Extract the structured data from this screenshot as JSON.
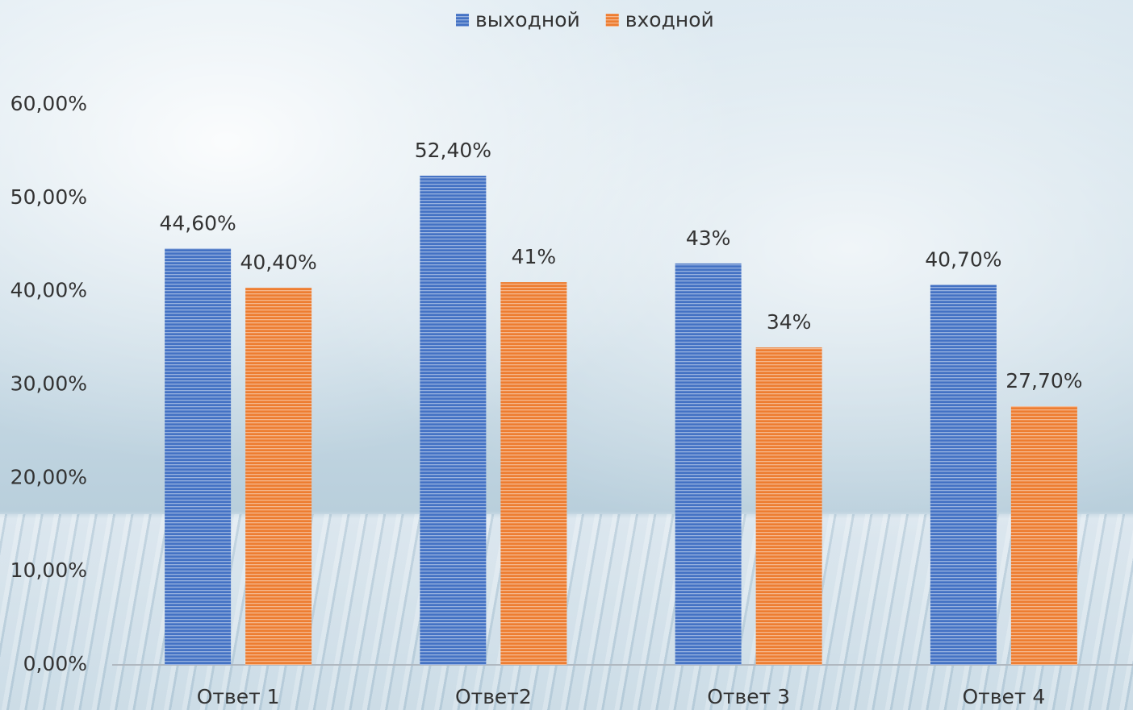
{
  "chart_data": {
    "type": "bar",
    "categories": [
      "Ответ 1",
      "Ответ2",
      "Ответ 3",
      "Ответ 4"
    ],
    "series": [
      {
        "name": "выходной",
        "color": "#4472c4",
        "values": [
          44.6,
          52.4,
          43,
          40.7
        ],
        "value_labels": [
          "44,60%",
          "52,40%",
          "43%",
          "40,70%"
        ]
      },
      {
        "name": "входной",
        "color": "#ed7d31",
        "values": [
          40.4,
          41,
          34,
          27.7
        ],
        "value_labels": [
          "40,40%",
          "41%",
          "34%",
          "27,70%"
        ]
      }
    ],
    "ylim": [
      0,
      60
    ],
    "yticks": [
      {
        "value": 0,
        "label": "0,00%"
      },
      {
        "value": 10,
        "label": "10,00%"
      },
      {
        "value": 20,
        "label": "20,00%"
      },
      {
        "value": 30,
        "label": "30,00%"
      },
      {
        "value": 40,
        "label": "40,00%"
      },
      {
        "value": 50,
        "label": "50,00%"
      },
      {
        "value": 60,
        "label": "60,00%"
      }
    ],
    "grid": false,
    "legend": "top"
  }
}
